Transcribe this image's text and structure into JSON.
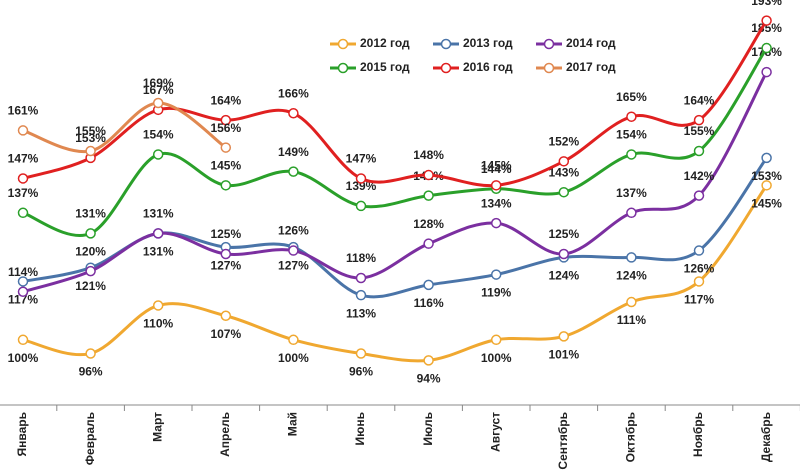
{
  "chart_data": {
    "type": "line",
    "categories": [
      "Январь",
      "Февраль",
      "Март",
      "Апрель",
      "Май",
      "Июнь",
      "Июль",
      "Август",
      "Сентябрь",
      "Октябрь",
      "Ноябрь",
      "Декабрь"
    ],
    "ylim": [
      81,
      199
    ],
    "series": [
      {
        "name": "2012 год",
        "color": "#f0a830",
        "values": [
          100,
          96,
          110,
          107,
          100,
          96,
          94,
          100,
          101,
          111,
          117,
          145
        ],
        "value_labels": [
          "100%",
          "96%",
          "110%",
          "107%",
          "100%",
          "96%",
          "94%",
          "100%",
          "101%",
          "111%",
          "117%",
          "145%"
        ]
      },
      {
        "name": "2013 год",
        "color": "#4a74a8",
        "values": [
          117,
          121,
          131,
          127,
          127,
          113,
          116,
          119,
          124,
          124,
          126,
          153
        ],
        "value_labels": [
          "117%",
          "121%",
          "131%",
          "127%",
          "127%",
          "113%",
          "116%",
          "119%",
          "124%",
          "124%",
          "126%",
          "153%"
        ]
      },
      {
        "name": "2014 год",
        "color": "#7b2fa0",
        "values": [
          114,
          120,
          131,
          125,
          126,
          118,
          128,
          134,
          125,
          137,
          142,
          178
        ],
        "value_labels": [
          "114%",
          "120%",
          "131%",
          "125%",
          "126%",
          "118%",
          "128%",
          "134%",
          "125%",
          "137%",
          "142%",
          "178%"
        ]
      },
      {
        "name": "2015 год",
        "color": "#2aa02a",
        "values": [
          137,
          131,
          154,
          145,
          149,
          139,
          142,
          144,
          143,
          154,
          155,
          185
        ],
        "value_labels": [
          "137%",
          "131%",
          "154%",
          "145%",
          "149%",
          "139%",
          "142%",
          "144%",
          "143%",
          "154%",
          "155%",
          "185%"
        ]
      },
      {
        "name": "2016 год",
        "color": "#e02020",
        "values": [
          147,
          153,
          167,
          164,
          166,
          147,
          148,
          145,
          152,
          165,
          164,
          193
        ],
        "value_labels": [
          "147%",
          "153%",
          "167%",
          "164%",
          "166%",
          "147%",
          "148%",
          "145%",
          "152%",
          "165%",
          "164%",
          "193%"
        ]
      },
      {
        "name": "2017 год",
        "color": "#e08850",
        "values": [
          161,
          155,
          169,
          156,
          null,
          null,
          null,
          null,
          null,
          null,
          null,
          null
        ],
        "value_labels": [
          "161%",
          "155%",
          "169%",
          "156%",
          null,
          null,
          null,
          null,
          null,
          null,
          null,
          null
        ]
      }
    ]
  }
}
